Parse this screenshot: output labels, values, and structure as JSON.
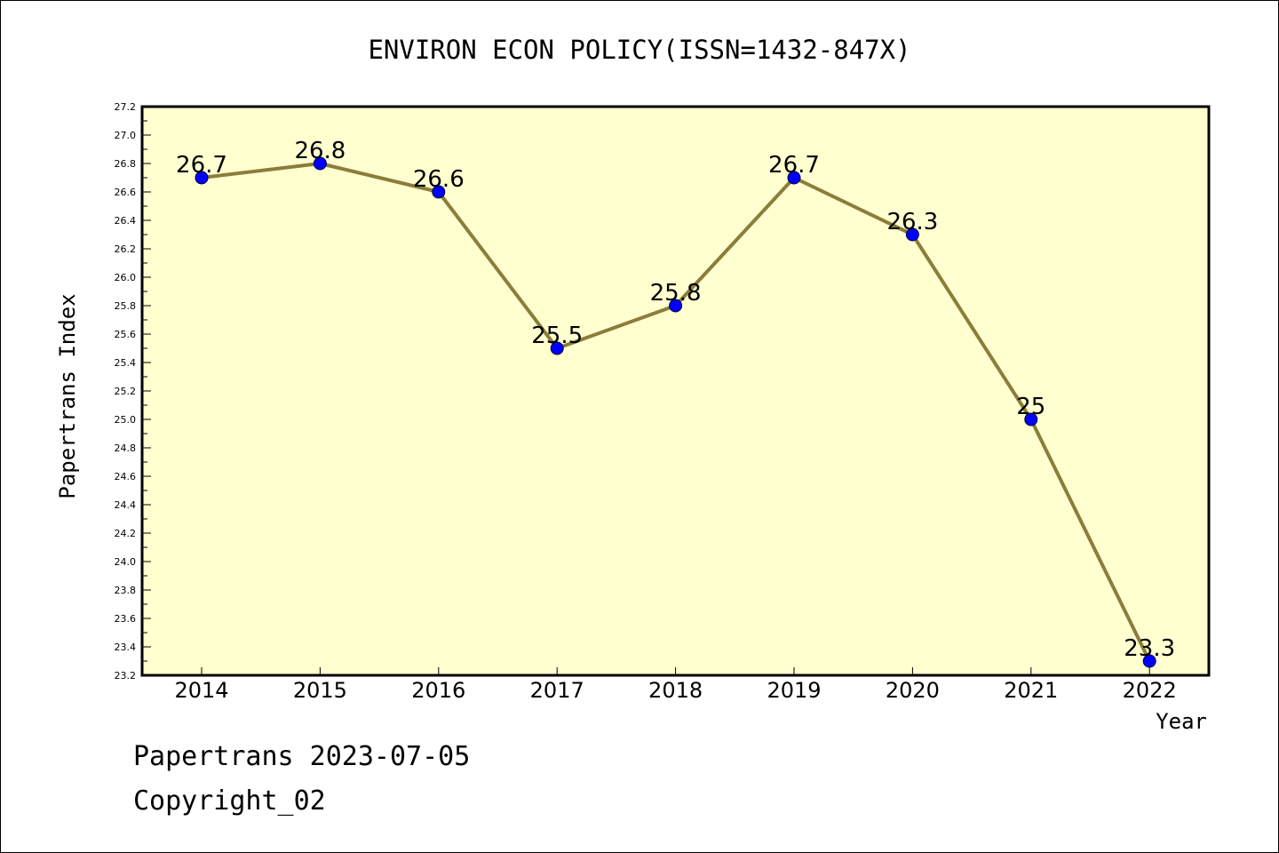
{
  "chart_data": {
    "type": "line",
    "title": "ENVIRON ECON POLICY(ISSN=1432-847X)",
    "xlabel": "Year",
    "ylabel": "Papertrans Index",
    "categories": [
      "2014",
      "2015",
      "2016",
      "2017",
      "2018",
      "2019",
      "2020",
      "2021",
      "2022"
    ],
    "values": [
      26.7,
      26.8,
      26.6,
      25.5,
      25.8,
      26.7,
      26.3,
      25,
      23.3
    ],
    "data_labels": [
      "26.7",
      "26.8",
      "26.6",
      "25.5",
      "25.8",
      "26.7",
      "26.3",
      "25",
      "23.3"
    ],
    "ylim": [
      23.2,
      27.2
    ],
    "ytick_step": 0.2,
    "ytick_labels": [
      "23.2",
      "23.4",
      "23.6",
      "23.8",
      "24.0",
      "24.2",
      "24.4",
      "24.6",
      "24.8",
      "25.0",
      "25.2",
      "25.4",
      "25.6",
      "25.8",
      "26.0",
      "26.2",
      "26.4",
      "26.6",
      "26.8",
      "27.0",
      "27.2"
    ],
    "grid": false,
    "legend": "none",
    "colors": {
      "plot_background": "#ffffd0",
      "line": "#8b7d3a",
      "marker": "#0000ff",
      "axes": "#000000"
    }
  },
  "footer": {
    "line1": "Papertrans 2023-07-05",
    "line2": "Copyright_02"
  }
}
